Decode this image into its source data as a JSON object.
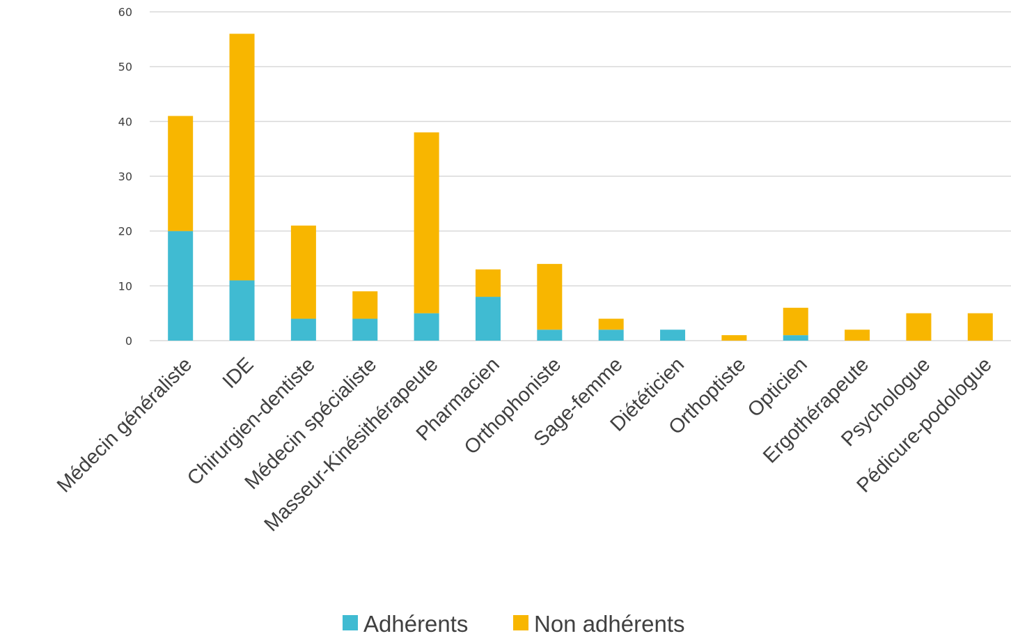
{
  "chart_data": {
    "type": "bar",
    "stacked": true,
    "categories": [
      "Médecin généraliste",
      "IDE",
      "Chirurgien-dentiste",
      "Médecin spécialiste",
      "Masseur-Kinésithérapeute",
      "Pharmacien",
      "Orthophoniste",
      "Sage-femme",
      "Diététicien",
      "Orthoptiste",
      "Opticien",
      "Ergothérapeute",
      "Psychologue",
      "Pédicure-podologue"
    ],
    "series": [
      {
        "name": "Adhérents",
        "color": "#40bbd2",
        "values": [
          20,
          11,
          4,
          4,
          5,
          8,
          2,
          2,
          2,
          0,
          1,
          0,
          0,
          0
        ]
      },
      {
        "name": "Non adhérents",
        "color": "#f8b600",
        "values": [
          21,
          45,
          17,
          5,
          33,
          5,
          12,
          2,
          0,
          1,
          5,
          2,
          5,
          5
        ]
      }
    ],
    "ylim": [
      0,
      60
    ],
    "yticks": [
      0,
      10,
      20,
      30,
      40,
      50,
      60
    ],
    "grid": true,
    "legend": "bottom"
  }
}
